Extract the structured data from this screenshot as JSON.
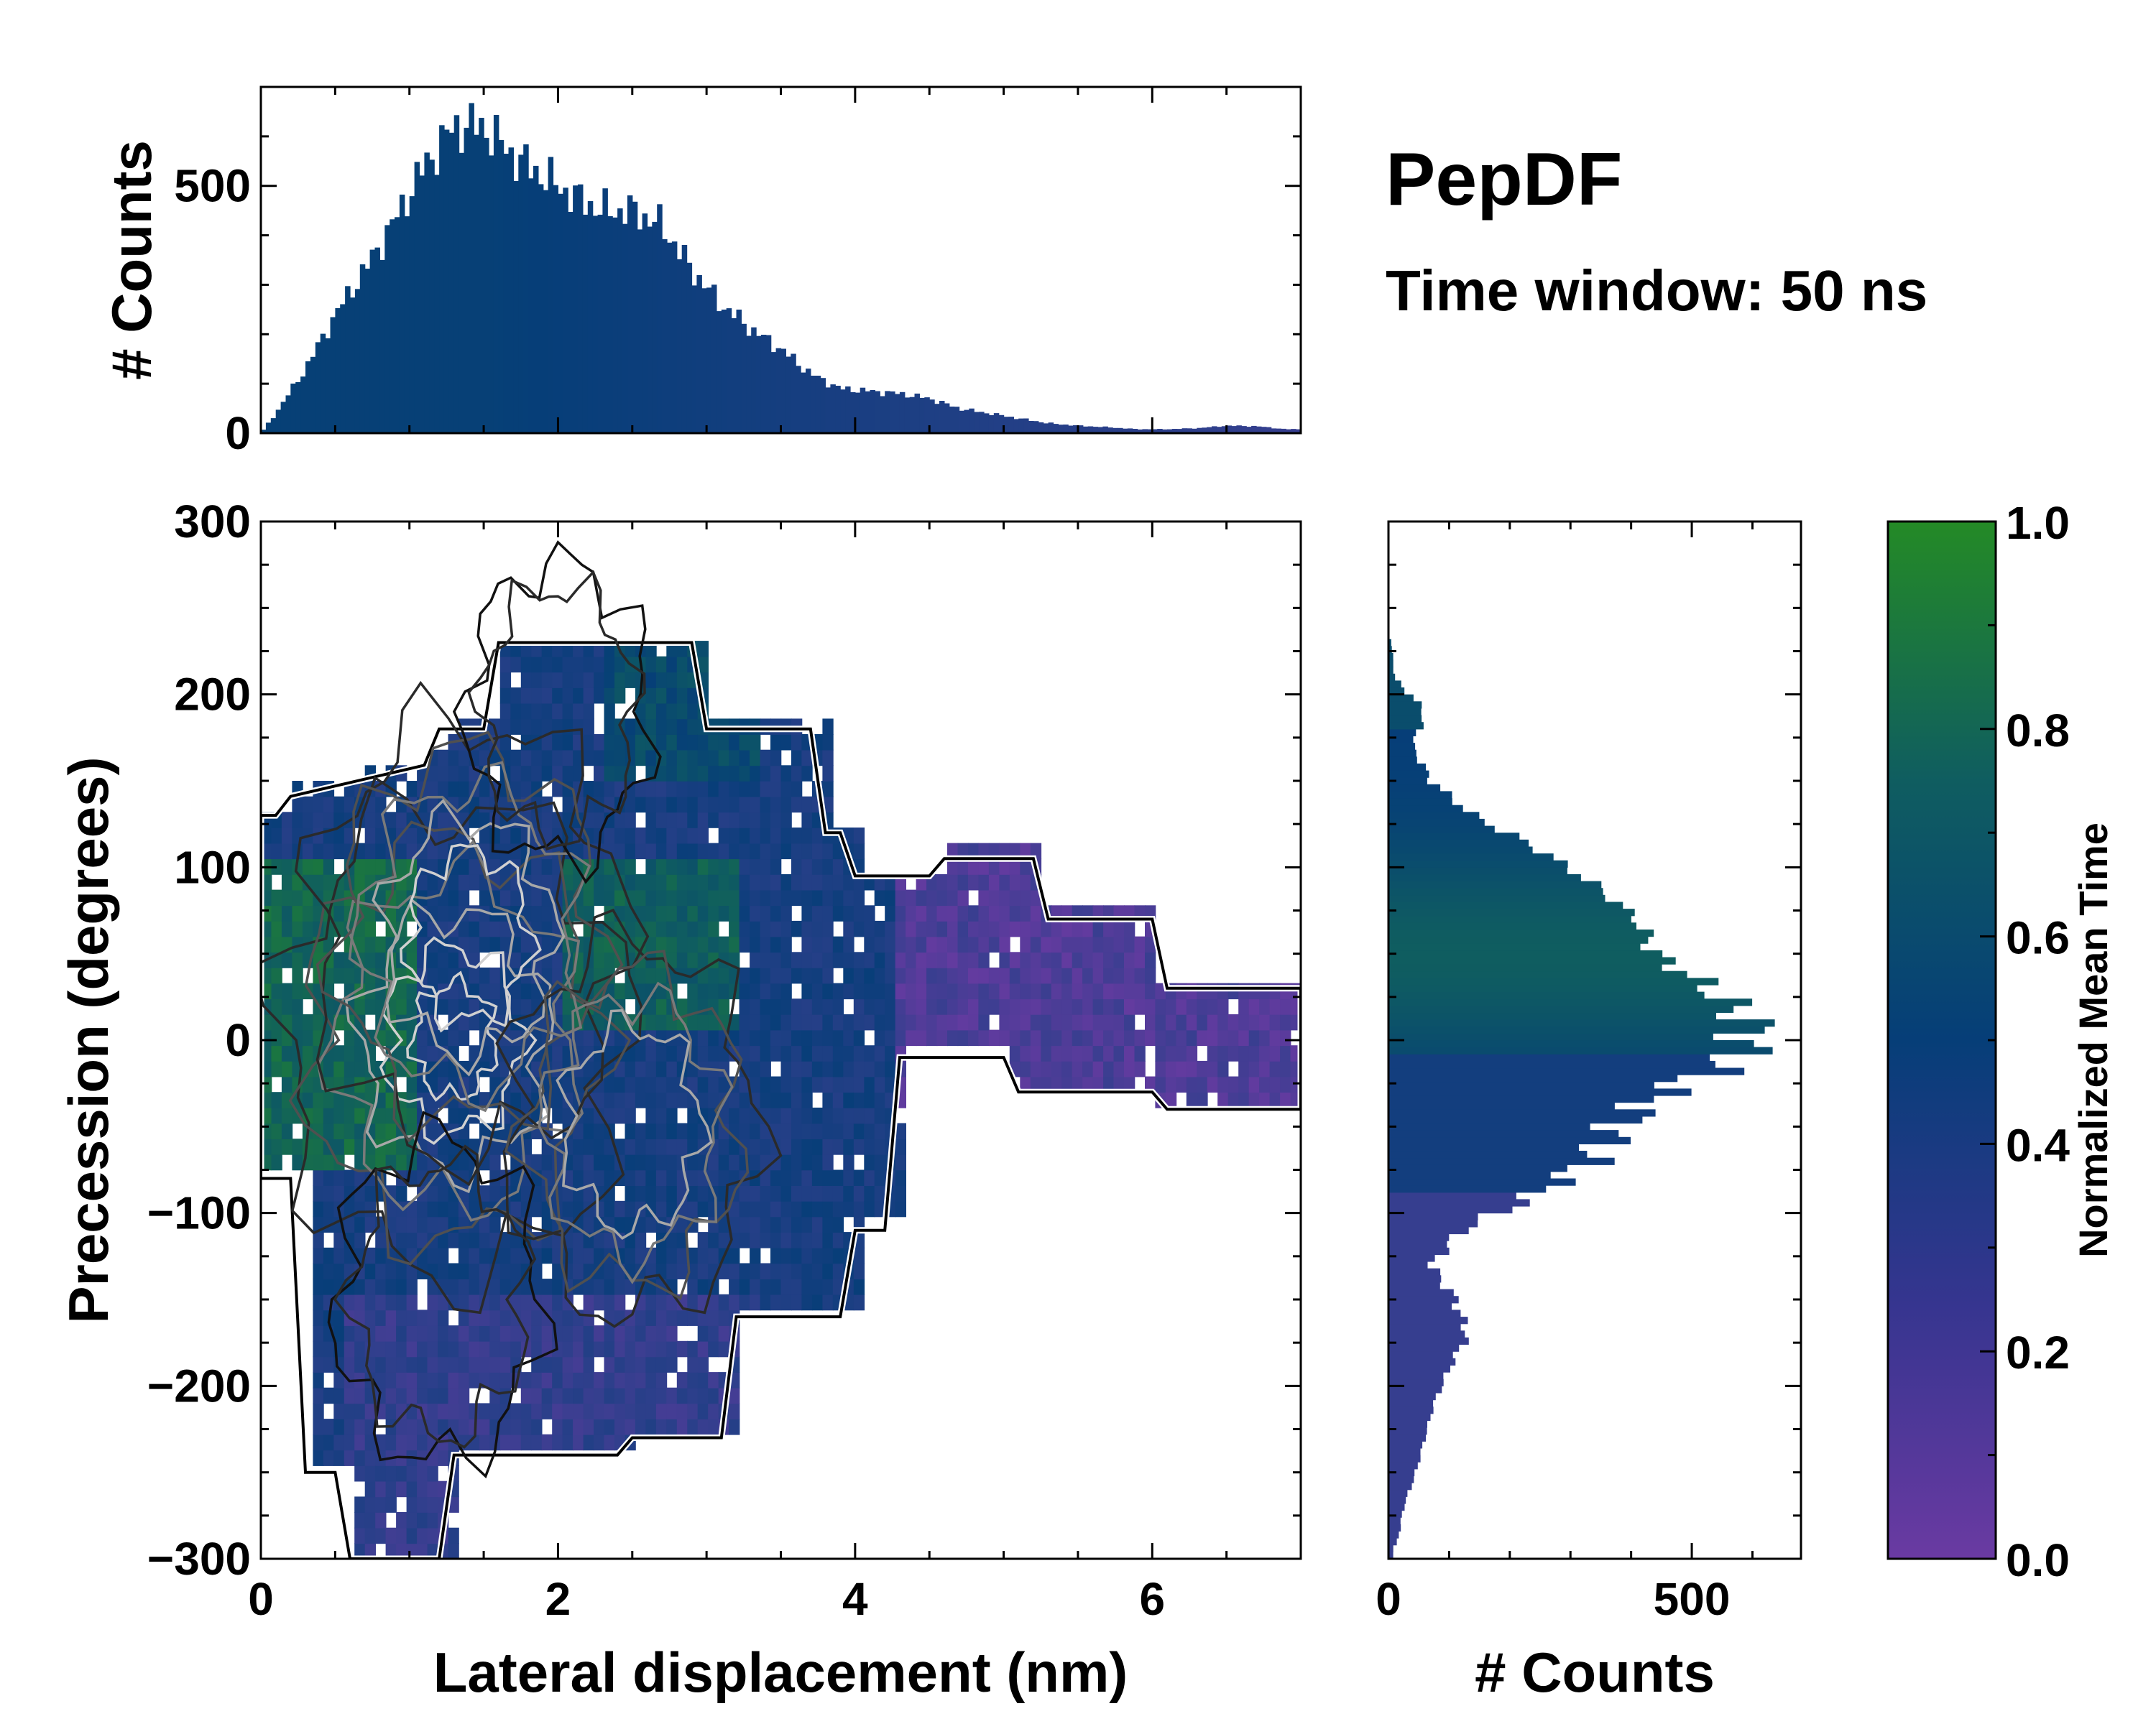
{
  "figure": {
    "title": "PepDF",
    "subtitle": "Time window: 50 ns"
  },
  "colors": {
    "low": "#6a3aa2",
    "mid_low": "#2f3f8c",
    "mid": "#063e78",
    "mid_high": "#0f5d60",
    "high": "#248a26",
    "outline": "#000000"
  },
  "chart_data": [
    {
      "id": "top-histogram",
      "type": "bar",
      "ylabel": "# Counts",
      "xlim": [
        0,
        7
      ],
      "ylim": [
        0,
        700
      ],
      "yticks": [
        0,
        500
      ],
      "ytick_labels": [
        "0",
        "500"
      ],
      "x": [
        0.1,
        0.3,
        0.5,
        0.7,
        0.9,
        1.1,
        1.3,
        1.5,
        1.7,
        1.9,
        2.1,
        2.3,
        2.5,
        2.7,
        2.9,
        3.1,
        3.3,
        3.5,
        3.7,
        3.9,
        4.1,
        4.3,
        4.5,
        4.7,
        4.9,
        5.1,
        5.3,
        5.5,
        5.7,
        5.9,
        6.1,
        6.3,
        6.5,
        6.7,
        6.9
      ],
      "values": [
        40,
        130,
        240,
        330,
        430,
        540,
        620,
        620,
        560,
        520,
        480,
        450,
        450,
        420,
        330,
        260,
        210,
        170,
        120,
        90,
        85,
        80,
        70,
        50,
        40,
        30,
        20,
        15,
        12,
        8,
        8,
        10,
        15,
        14,
        8
      ]
    },
    {
      "id": "right-histogram",
      "type": "bar",
      "orientation": "horizontal",
      "xlabel": "# Counts",
      "xlim": [
        0,
        680
      ],
      "ylim": [
        -300,
        300
      ],
      "xticks": [
        0,
        500
      ],
      "xtick_labels": [
        "0",
        "500"
      ],
      "y": [
        -290,
        -270,
        -250,
        -230,
        -210,
        -190,
        -170,
        -150,
        -130,
        -110,
        -90,
        -70,
        -50,
        -30,
        -10,
        10,
        30,
        50,
        70,
        90,
        110,
        130,
        150,
        170,
        190,
        210,
        230
      ],
      "values": [
        15,
        25,
        45,
        60,
        75,
        100,
        130,
        110,
        70,
        120,
        240,
        330,
        380,
        450,
        580,
        600,
        530,
        440,
        410,
        340,
        250,
        140,
        70,
        40,
        60,
        10,
        5
      ]
    },
    {
      "id": "main-2d-histogram",
      "type": "heatmap",
      "xlabel": "Lateral displacement (nm)",
      "ylabel": "Precession (degrees)",
      "xlim": [
        0,
        7
      ],
      "ylim": [
        -300,
        300
      ],
      "xticks": [
        0,
        2,
        4,
        6
      ],
      "xtick_labels": [
        "0",
        "2",
        "4",
        "6"
      ],
      "yticks": [
        -300,
        -200,
        -100,
        0,
        100,
        200,
        300
      ],
      "ytick_labels": [
        "−300",
        "−200",
        "−100",
        "0",
        "100",
        "200",
        "300"
      ],
      "contours": "density contour lines, dark outer to light inner",
      "density_peaks": [
        {
          "x": 1.3,
          "y": 0,
          "level": 1.0
        },
        {
          "x": 1.4,
          "y": 60,
          "level": 0.85
        },
        {
          "x": 2.5,
          "y": -50,
          "level": 0.6
        },
        {
          "x": 1.2,
          "y": -150,
          "level": 0.4
        },
        {
          "x": 2.0,
          "y": 190,
          "level": 0.3
        }
      ],
      "color_regions": [
        {
          "x": [
            0.0,
            1.0
          ],
          "y": [
            -80,
            100
          ],
          "mean_time": 0.8
        },
        {
          "x": [
            2.0,
            3.2
          ],
          "y": [
            0,
            100
          ],
          "mean_time": 0.75
        },
        {
          "x": [
            2.3,
            3.3
          ],
          "y": [
            150,
            235
          ],
          "mean_time": 0.6
        },
        {
          "x": [
            4.2,
            7.0
          ],
          "y": [
            -45,
            110
          ],
          "mean_time": 0.12
        },
        {
          "x": [
            0.5,
            3.3
          ],
          "y": [
            -300,
            -150
          ],
          "mean_time": 0.25
        }
      ]
    },
    {
      "id": "colorbar",
      "type": "colorbar",
      "label": "Normalized Mean Time",
      "range": [
        0.0,
        1.0
      ],
      "ticks": [
        0.0,
        0.2,
        0.4,
        0.6,
        0.8,
        1.0
      ],
      "tick_labels": [
        "0.0",
        "0.2",
        "0.4",
        "0.6",
        "0.8",
        "1.0"
      ]
    }
  ]
}
